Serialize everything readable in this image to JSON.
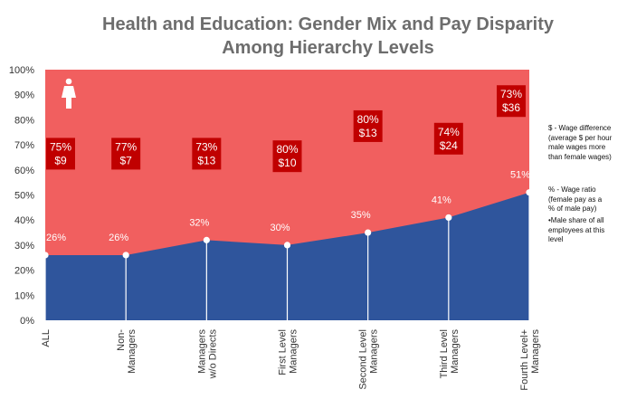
{
  "chart_data": {
    "type": "area",
    "title": [
      "Health and Education: Gender Mix and Pay Disparity",
      "Among Hierarchy Levels"
    ],
    "categories": [
      [
        "ALL"
      ],
      [
        "Non-",
        "Managers"
      ],
      [
        "Managers",
        "w/o Directs"
      ],
      [
        "First Level",
        "Managers"
      ],
      [
        "Second Level",
        "Managers"
      ],
      [
        "Third Level",
        "Managers"
      ],
      [
        "Fourth Level+",
        "Managers"
      ]
    ],
    "y_ticks": [
      "0%",
      "10%",
      "20%",
      "30%",
      "40%",
      "50%",
      "60%",
      "70%",
      "80%",
      "90%",
      "100%"
    ],
    "ylim": [
      0,
      100
    ],
    "male_share": [
      26,
      26,
      32,
      30,
      35,
      41,
      51
    ],
    "male_share_labels": [
      "26%",
      "26%",
      "32%",
      "30%",
      "35%",
      "41%",
      "51%"
    ],
    "wage_ratio_labels": [
      "75%",
      "77%",
      "73%",
      "80%",
      "80%",
      "74%",
      "73%"
    ],
    "wage_diff_labels": [
      "$9",
      "$7",
      "$13",
      "$10",
      "$13",
      "$24",
      "$36"
    ],
    "callout_level_pct": [
      67,
      67,
      67,
      66,
      78,
      73,
      88
    ],
    "colors": {
      "female": "#f15f5f",
      "male": "#2f559c",
      "callout": "#c00000",
      "axis_text": "#333333"
    },
    "female_icon": "female-figure-icon",
    "notes": [
      [
        "$ - Wage difference",
        "(average  $ per hour",
        "male wages more",
        "than female wages)"
      ],
      [
        "% - Wage ratio",
        "(female  pay as a",
        "% of male pay)"
      ],
      [
        "•Male share of all",
        "employees  at this",
        "level"
      ]
    ]
  }
}
